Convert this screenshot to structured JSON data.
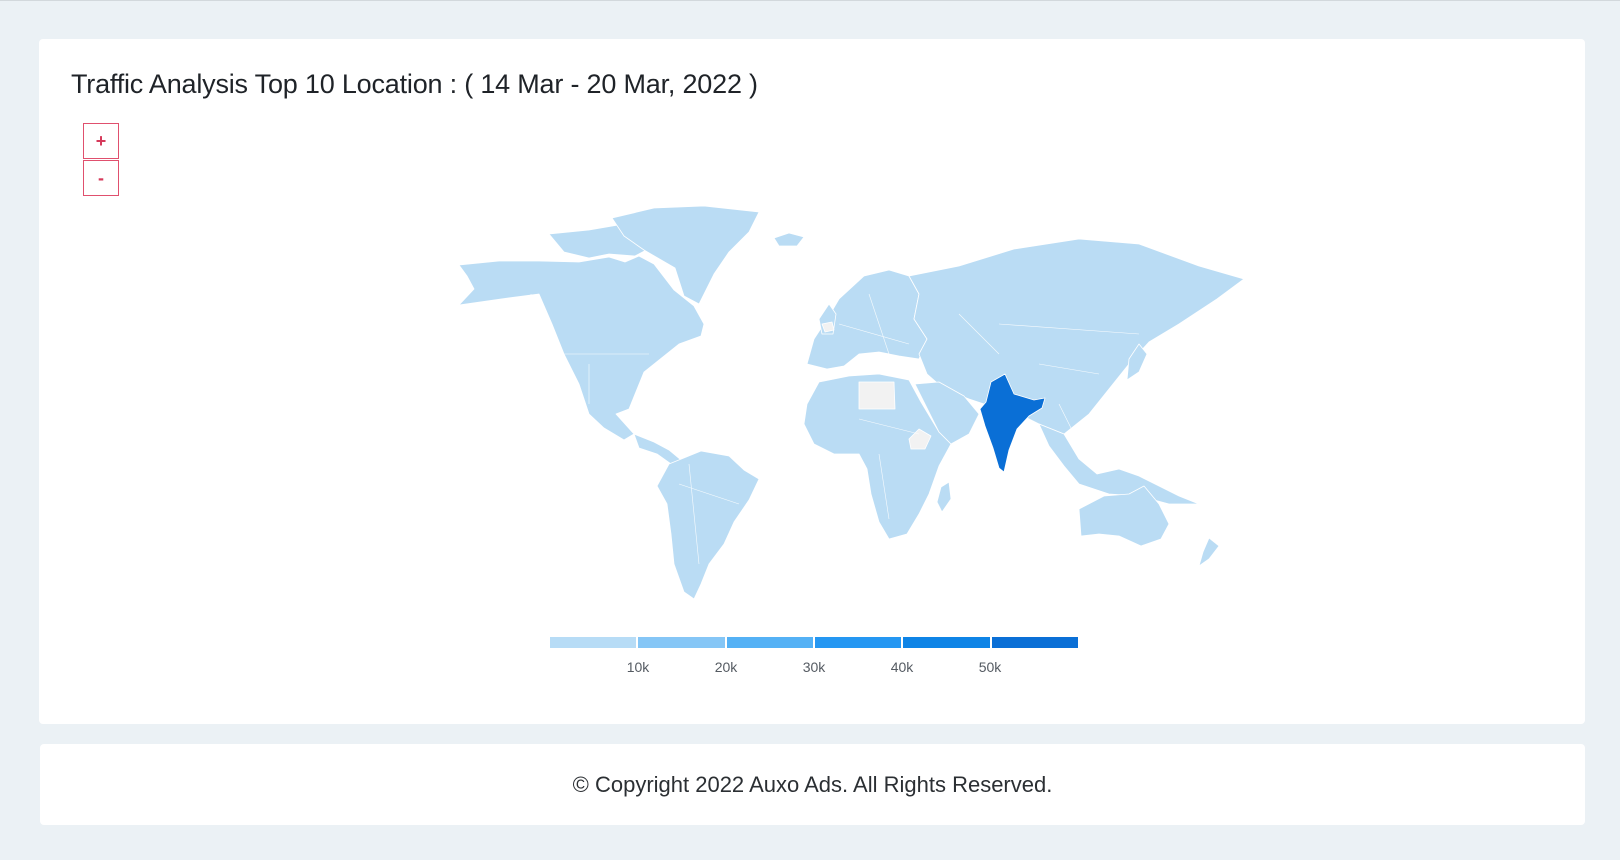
{
  "card": {
    "title": "Traffic Analysis Top 10 Location : ( 14 Mar - 20 Mar, 2022 )"
  },
  "zoom": {
    "in_label": "+",
    "out_label": "-"
  },
  "map": {
    "type": "choropleth-world",
    "highlighted_region": "India",
    "colors": {
      "default_region": "#badcf4",
      "no_data_region": "#f2f2f2",
      "highlight_region": "#0a6fd6",
      "border": "#ffffff",
      "accent": "#e0506e"
    }
  },
  "legend": {
    "colors": [
      "#b7dcf6",
      "#85c6f6",
      "#54b1f5",
      "#2597f2",
      "#0e84e6",
      "#0a6fd6"
    ],
    "ticks": [
      "10k",
      "20k",
      "30k",
      "40k",
      "50k"
    ]
  },
  "footer": {
    "text": "© Copyright 2022 Auxo Ads. All Rights Reserved."
  }
}
